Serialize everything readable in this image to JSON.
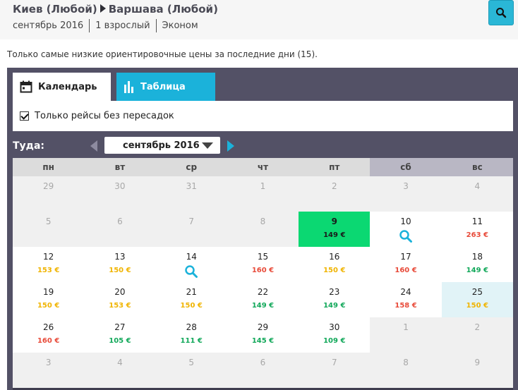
{
  "header": {
    "from": "Киев (Любой)",
    "to": "Варшава (Любой)",
    "month": "сентябрь 2016",
    "passengers": "1 взрослый",
    "cabin": "Эконом"
  },
  "note": "Только самые низкие ориентировочные цены за последние дни (15).",
  "tabs": {
    "calendar": "Календарь",
    "table": "Таблица"
  },
  "filter": {
    "direct_only": "Только рейсы без пересадок",
    "checked": true
  },
  "nav": {
    "label": "Туда:",
    "month": "сентябрь 2016"
  },
  "colors": {
    "accent": "#1bb2da",
    "selected": "#0bd872",
    "price_yellow": "#f0b400",
    "price_red": "#e84b3a",
    "price_green": "#12a85a"
  },
  "weekdays": [
    "пн",
    "вт",
    "ср",
    "чт",
    "пт",
    "сб",
    "вс"
  ],
  "weeks": [
    [
      {
        "day": "29",
        "state": "other"
      },
      {
        "day": "30",
        "state": "other"
      },
      {
        "day": "31",
        "state": "other"
      },
      {
        "day": "1",
        "state": "past"
      },
      {
        "day": "2",
        "state": "past"
      },
      {
        "day": "3",
        "state": "past"
      },
      {
        "day": "4",
        "state": "past"
      }
    ],
    [
      {
        "day": "5",
        "state": "past"
      },
      {
        "day": "6",
        "state": "past"
      },
      {
        "day": "7",
        "state": "past"
      },
      {
        "day": "8",
        "state": "past"
      },
      {
        "day": "9",
        "price": "149 €",
        "color": "green",
        "state": "selected"
      },
      {
        "day": "10",
        "icon": "search-icon"
      },
      {
        "day": "11",
        "price": "263 €",
        "color": "red"
      }
    ],
    [
      {
        "day": "12",
        "price": "153 €",
        "color": "yellow"
      },
      {
        "day": "13",
        "price": "150 €",
        "color": "yellow"
      },
      {
        "day": "14",
        "icon": "search-icon"
      },
      {
        "day": "15",
        "price": "160 €",
        "color": "red"
      },
      {
        "day": "16",
        "price": "150 €",
        "color": "yellow"
      },
      {
        "day": "17",
        "price": "160 €",
        "color": "red"
      },
      {
        "day": "18",
        "price": "149 €",
        "color": "green"
      }
    ],
    [
      {
        "day": "19",
        "price": "150 €",
        "color": "yellow"
      },
      {
        "day": "20",
        "price": "153 €",
        "color": "yellow"
      },
      {
        "day": "21",
        "price": "150 €",
        "color": "yellow"
      },
      {
        "day": "22",
        "price": "149 €",
        "color": "green"
      },
      {
        "day": "23",
        "price": "149 €",
        "color": "green"
      },
      {
        "day": "24",
        "price": "158 €",
        "color": "red"
      },
      {
        "day": "25",
        "price": "150 €",
        "color": "yellow",
        "state": "highlighted"
      }
    ],
    [
      {
        "day": "26",
        "price": "160 €",
        "color": "red"
      },
      {
        "day": "27",
        "price": "105 €",
        "color": "green"
      },
      {
        "day": "28",
        "price": "111 €",
        "color": "green"
      },
      {
        "day": "29",
        "price": "145 €",
        "color": "green"
      },
      {
        "day": "30",
        "price": "109 €",
        "color": "green"
      },
      {
        "day": "1",
        "state": "other"
      },
      {
        "day": "2",
        "state": "other"
      }
    ],
    [
      {
        "day": "3",
        "state": "other"
      },
      {
        "day": "4",
        "state": "other"
      },
      {
        "day": "5",
        "state": "other"
      },
      {
        "day": "6",
        "state": "other"
      },
      {
        "day": "7",
        "state": "other"
      },
      {
        "day": "8",
        "state": "other"
      },
      {
        "day": "9",
        "state": "other"
      }
    ]
  ]
}
